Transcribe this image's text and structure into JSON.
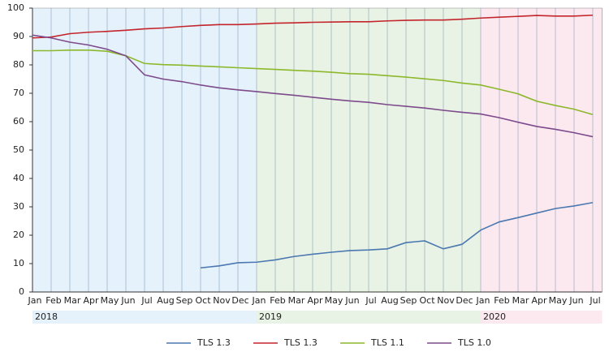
{
  "chart_data": {
    "type": "line",
    "categories": [
      "Jan",
      "Feb",
      "Mar",
      "Apr",
      "May",
      "Jun",
      "Jul",
      "Aug",
      "Sep",
      "Oct",
      "Nov",
      "Dec",
      "Jan",
      "Feb",
      "Mar",
      "Apr",
      "May",
      "Jun",
      "Jul",
      "Aug",
      "Sep",
      "Oct",
      "Nov",
      "Dec",
      "Jan",
      "Feb",
      "Mar",
      "Apr",
      "May",
      "Jun",
      "Jul"
    ],
    "year_labels": [
      "2018",
      "2019",
      "2020"
    ],
    "band_colors": [
      "#e5f2fc",
      "#e9f3e5",
      "#fce9f0"
    ],
    "series": [
      {
        "name": "TLS 1.3",
        "color": "#4a78b0",
        "values": [
          null,
          null,
          null,
          null,
          null,
          null,
          null,
          null,
          null,
          8.5,
          9.2,
          10.3,
          10.5,
          11.3,
          12.5,
          13.3,
          14,
          14.6,
          14.8,
          15.2,
          17.4,
          18,
          15.2,
          16.8,
          21.8,
          24.7,
          26.2,
          27.8,
          29.4,
          30.3,
          31.5
        ]
      },
      {
        "name": "TLS 1.3",
        "color": "#c4242b",
        "values": [
          89.5,
          89.8,
          91,
          91.5,
          91.8,
          92.2,
          92.7,
          93,
          93.5,
          93.9,
          94.2,
          94.2,
          94.4,
          94.7,
          94.8,
          95,
          95.1,
          95.2,
          95.2,
          95.5,
          95.7,
          95.8,
          95.8,
          96.1,
          96.5,
          96.8,
          97.1,
          97.4,
          97.2,
          97.2,
          97.5
        ]
      },
      {
        "name": "TLS 1.1",
        "color": "#8cb82b",
        "values": [
          85,
          85,
          85.2,
          85.2,
          84.8,
          83.2,
          80.5,
          80.1,
          79.9,
          79.6,
          79.3,
          79,
          78.7,
          78.4,
          78.1,
          77.8,
          77.4,
          76.9,
          76.7,
          76.2,
          75.7,
          75.1,
          74.5,
          73.6,
          72.9,
          71.4,
          69.8,
          67.2,
          65.7,
          64.4,
          62.5
        ]
      },
      {
        "name": "TLS 1.0",
        "color": "#7d4a8c",
        "values": [
          90.5,
          89.5,
          88,
          87,
          85.5,
          83.2,
          76.5,
          75,
          74.1,
          72.9,
          71.9,
          71.2,
          70.6,
          69.9,
          69.3,
          68.6,
          67.9,
          67.3,
          66.8,
          66,
          65.4,
          64.8,
          64,
          63.3,
          62.7,
          61.4,
          59.8,
          58.3,
          57.3,
          56.1,
          54.7
        ]
      }
    ],
    "ylim": [
      0,
      100
    ],
    "yticks": [
      0,
      10,
      20,
      30,
      40,
      50,
      60,
      70,
      80,
      90,
      100
    ],
    "grid": true
  }
}
